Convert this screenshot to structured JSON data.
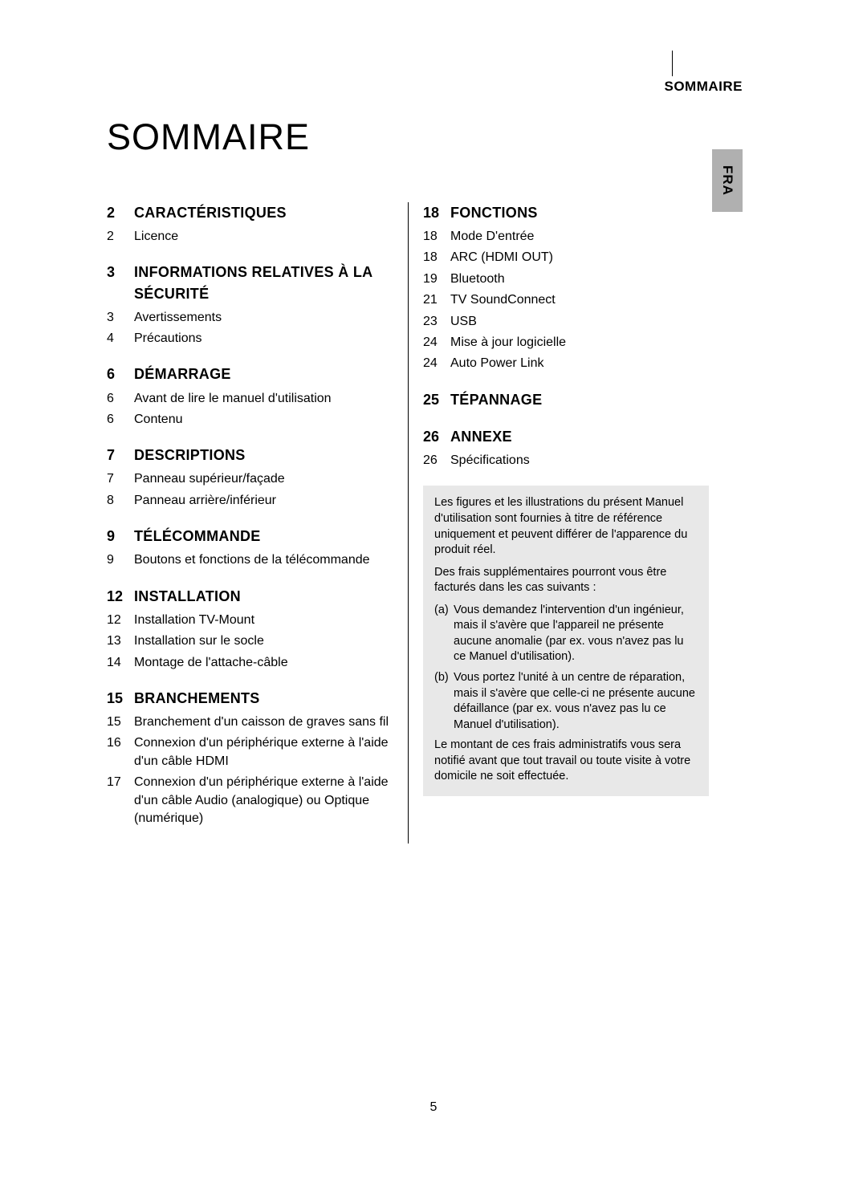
{
  "header": {
    "label": "SOMMAIRE",
    "language_tab": "FRA"
  },
  "title": "SOMMAIRE",
  "page_number": "5",
  "columns": {
    "left": [
      {
        "page": "2",
        "title": "CARACTÉRISTIQUES",
        "entries": [
          {
            "page": "2",
            "text": "Licence"
          }
        ]
      },
      {
        "page": "3",
        "title": "INFORMATIONS RELATIVES À LA SÉCURITÉ",
        "entries": [
          {
            "page": "3",
            "text": "Avertissements"
          },
          {
            "page": "4",
            "text": "Précautions"
          }
        ]
      },
      {
        "page": "6",
        "title": "DÉMARRAGE",
        "entries": [
          {
            "page": "6",
            "text": "Avant de lire le manuel d'utilisation"
          },
          {
            "page": "6",
            "text": "Contenu"
          }
        ]
      },
      {
        "page": "7",
        "title": "DESCRIPTIONS",
        "entries": [
          {
            "page": "7",
            "text": "Panneau supérieur/façade"
          },
          {
            "page": "8",
            "text": "Panneau arrière/inférieur"
          }
        ]
      },
      {
        "page": "9",
        "title": "TÉLÉCOMMANDE",
        "entries": [
          {
            "page": "9",
            "text": "Boutons et fonctions de la télécommande"
          }
        ]
      },
      {
        "page": "12",
        "title": "INSTALLATION",
        "entries": [
          {
            "page": "12",
            "text": "Installation TV-Mount"
          },
          {
            "page": "13",
            "text": "Installation sur le socle"
          },
          {
            "page": "14",
            "text": "Montage de l'attache-câble"
          }
        ]
      },
      {
        "page": "15",
        "title": "BRANCHEMENTS",
        "entries": [
          {
            "page": "15",
            "text": "Branchement d'un caisson de graves sans fil"
          },
          {
            "page": "16",
            "text": "Connexion d'un périphérique externe à l'aide d'un câble HDMI"
          },
          {
            "page": "17",
            "text": "Connexion d'un périphérique externe à l'aide d'un câble Audio (analogique) ou Optique (numérique)"
          }
        ]
      }
    ],
    "right": [
      {
        "page": "18",
        "title": "FONCTIONS",
        "entries": [
          {
            "page": "18",
            "text": "Mode D'entrée"
          },
          {
            "page": "18",
            "text": "ARC (HDMI OUT)"
          },
          {
            "page": "19",
            "text": "Bluetooth"
          },
          {
            "page": "21",
            "text": "TV SoundConnect"
          },
          {
            "page": "23",
            "text": "USB"
          },
          {
            "page": "24",
            "text": "Mise à jour logicielle"
          },
          {
            "page": "24",
            "text": "Auto Power Link"
          }
        ]
      },
      {
        "page": "25",
        "title": "TÉPANNAGE",
        "entries": []
      },
      {
        "page": "26",
        "title": "ANNEXE",
        "entries": [
          {
            "page": "26",
            "text": "Spécifications"
          }
        ]
      }
    ]
  },
  "note_box": {
    "intro": "Les figures et les illustrations du présent Manuel d'utilisation sont fournies à titre de référence uniquement et peuvent différer de l'apparence du produit réel.",
    "fees_intro": "Des frais supplémentaires pourront vous être facturés dans les cas suivants :",
    "items": [
      {
        "marker": "(a)",
        "text": "Vous demandez l'intervention d'un ingénieur, mais il s'avère que l'appareil ne présente aucune anomalie (par ex. vous n'avez pas lu ce Manuel d'utilisation)."
      },
      {
        "marker": "(b)",
        "text": "Vous portez l'unité à un centre de réparation, mais il s'avère que celle-ci ne présente aucune défaillance (par ex. vous n'avez pas lu ce Manuel d'utilisation)."
      }
    ],
    "outro": "Le montant de ces frais administratifs vous sera notifié avant que tout travail ou toute visite à votre domicile ne soit effectuée."
  }
}
